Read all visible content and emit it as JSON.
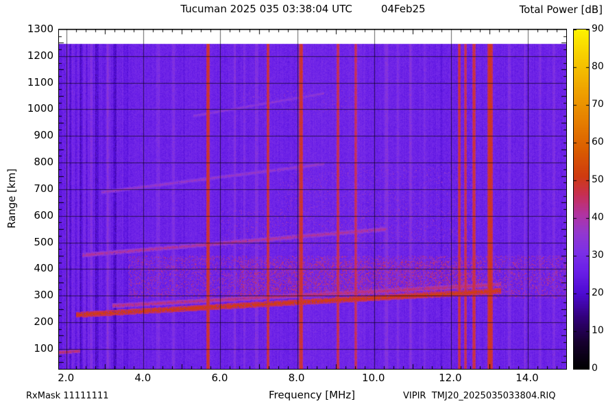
{
  "annotations": {
    "rx_mask": "RxMask 11111111",
    "file": "VIPIR  TMJ20_2025035033804.RIQ"
  },
  "chart_data": {
    "type": "heatmap",
    "title": "Tucuman 2025 035 03:38:04 UTC",
    "date_label": "04Feb25",
    "colorbar_title": "Total Power [dB]",
    "xlabel": "Frequency [MHz]",
    "ylabel": "Range [km]",
    "grid": true,
    "x_range_mhz": [
      1.8,
      15.0
    ],
    "y_range_km": [
      25,
      1300
    ],
    "x_tick_labels": [
      "2.0",
      "4.0",
      "6.0",
      "8.0",
      "10.0",
      "12.0",
      "14.0"
    ],
    "x_tick_values": [
      2,
      4,
      6,
      8,
      10,
      12,
      14
    ],
    "x_minor_step": 0.25,
    "y_tick_labels": [
      "100",
      "200",
      "300",
      "400",
      "500",
      "600",
      "700",
      "800",
      "900",
      "1000",
      "1100",
      "1200",
      "1300"
    ],
    "y_tick_values": [
      100,
      200,
      300,
      400,
      500,
      600,
      700,
      800,
      900,
      1000,
      1100,
      1200,
      1300
    ],
    "y_minor_step": 25,
    "colorbar": {
      "min_db": 0,
      "max_db": 90,
      "ticks": [
        0,
        10,
        20,
        30,
        40,
        50,
        60,
        70,
        80,
        90
      ]
    },
    "colormap_stops": [
      [
        0,
        "#000000"
      ],
      [
        7,
        "#16002e"
      ],
      [
        14,
        "#33007e"
      ],
      [
        20,
        "#4d0ad2"
      ],
      [
        26,
        "#6a1fe8"
      ],
      [
        31,
        "#7c30e6"
      ],
      [
        36,
        "#9238cf"
      ],
      [
        41,
        "#b133a0"
      ],
      [
        46,
        "#c62f55"
      ],
      [
        51,
        "#cf3a10"
      ],
      [
        58,
        "#da5c00"
      ],
      [
        66,
        "#e68000"
      ],
      [
        74,
        "#efa300"
      ],
      [
        82,
        "#f6c900"
      ],
      [
        90,
        "#fdf200"
      ]
    ],
    "background": {
      "base_db": 27,
      "pixel_noise_db": 3,
      "column_noise_db": 1.3,
      "low_freq_column_noise_db": 4,
      "low_freq_limit_mhz": 3.6,
      "data_top_km": 1245
    },
    "rfi_lines": [
      {
        "f": 5.68,
        "hw": 0.05,
        "db": 50
      },
      {
        "f": 7.24,
        "hw": 0.04,
        "db": 49
      },
      {
        "f": 8.1,
        "hw": 0.05,
        "db": 50
      },
      {
        "f": 9.06,
        "hw": 0.04,
        "db": 48
      },
      {
        "f": 9.52,
        "hw": 0.04,
        "db": 47
      },
      {
        "f": 12.22,
        "hw": 0.04,
        "db": 49
      },
      {
        "f": 12.38,
        "hw": 0.035,
        "db": 48
      },
      {
        "f": 12.6,
        "hw": 0.04,
        "db": 49
      },
      {
        "f": 13.02,
        "hw": 0.07,
        "db": 51
      }
    ],
    "bright_stripes": [
      {
        "f": 2.62,
        "hw": 0.03,
        "boost": 4
      },
      {
        "f": 3.08,
        "hw": 0.03,
        "boost": 4
      },
      {
        "f": 4.38,
        "hw": 0.04,
        "boost": 4
      },
      {
        "f": 4.78,
        "hw": 0.03,
        "boost": 5
      },
      {
        "f": 6.38,
        "hw": 0.03,
        "boost": 5
      },
      {
        "f": 6.62,
        "hw": 0.03,
        "boost": 4
      },
      {
        "f": 6.95,
        "hw": 0.04,
        "boost": 5
      },
      {
        "f": 10.32,
        "hw": 0.04,
        "boost": 5
      },
      {
        "f": 10.62,
        "hw": 0.03,
        "boost": 4
      },
      {
        "f": 10.95,
        "hw": 0.04,
        "boost": 5
      },
      {
        "f": 11.32,
        "hw": 0.03,
        "boost": 4
      },
      {
        "f": 13.52,
        "hw": 0.04,
        "boost": 4
      },
      {
        "f": 13.92,
        "hw": 0.03,
        "boost": 4
      },
      {
        "f": 14.32,
        "hw": 0.04,
        "boost": 4
      },
      {
        "f": 14.68,
        "hw": 0.03,
        "boost": 4
      },
      {
        "f": 8.9,
        "hw": 0.9,
        "boost": 1.2
      }
    ],
    "dark_stripes": [
      {
        "f": 2.1,
        "hw": 0.04,
        "drop": 5
      },
      {
        "f": 2.38,
        "hw": 0.05,
        "drop": 6
      },
      {
        "f": 2.8,
        "hw": 0.05,
        "drop": 5
      },
      {
        "f": 3.25,
        "hw": 0.04,
        "drop": 5
      },
      {
        "f": 5.05,
        "hw": 0.03,
        "drop": 3
      },
      {
        "f": 11.75,
        "hw": 0.03,
        "drop": 3
      }
    ],
    "echo_traces": [
      {
        "f0": 1.8,
        "f1": 2.35,
        "r0": 86,
        "r1": 92,
        "w": 7,
        "db": 46
      },
      {
        "f0": 2.25,
        "f1": 13.3,
        "r0": 228,
        "r1": 318,
        "w": 11,
        "db": 52
      },
      {
        "f0": 3.2,
        "f1": 13.3,
        "r0": 262,
        "r1": 342,
        "w": 9,
        "db": 44
      },
      {
        "f0": 2.4,
        "f1": 10.3,
        "r0": 452,
        "r1": 550,
        "w": 9,
        "db": 42
      },
      {
        "f0": 2.9,
        "f1": 8.7,
        "r0": 688,
        "r1": 795,
        "w": 8,
        "db": 38
      },
      {
        "f0": 5.3,
        "f1": 8.7,
        "r0": 975,
        "r1": 1060,
        "w": 7,
        "db": 36
      }
    ],
    "scatter_bands": [
      {
        "f0": 3.6,
        "f1": 15.0,
        "r0": 290,
        "r1": 450,
        "density": 0.2,
        "db": 37,
        "spread": 8
      },
      {
        "f0": 6.5,
        "f1": 12.8,
        "r0": 300,
        "r1": 430,
        "density": 0.18,
        "db": 40,
        "spread": 7
      },
      {
        "f0": 6.0,
        "f1": 12.6,
        "r0": 470,
        "r1": 620,
        "density": 0.07,
        "db": 34,
        "spread": 6
      },
      {
        "f0": 7.5,
        "f1": 12.6,
        "r0": 620,
        "r1": 800,
        "density": 0.05,
        "db": 33,
        "spread": 6
      },
      {
        "f0": 6.5,
        "f1": 9.5,
        "r0": 980,
        "r1": 1070,
        "density": 0.05,
        "db": 33,
        "spread": 5
      }
    ]
  }
}
